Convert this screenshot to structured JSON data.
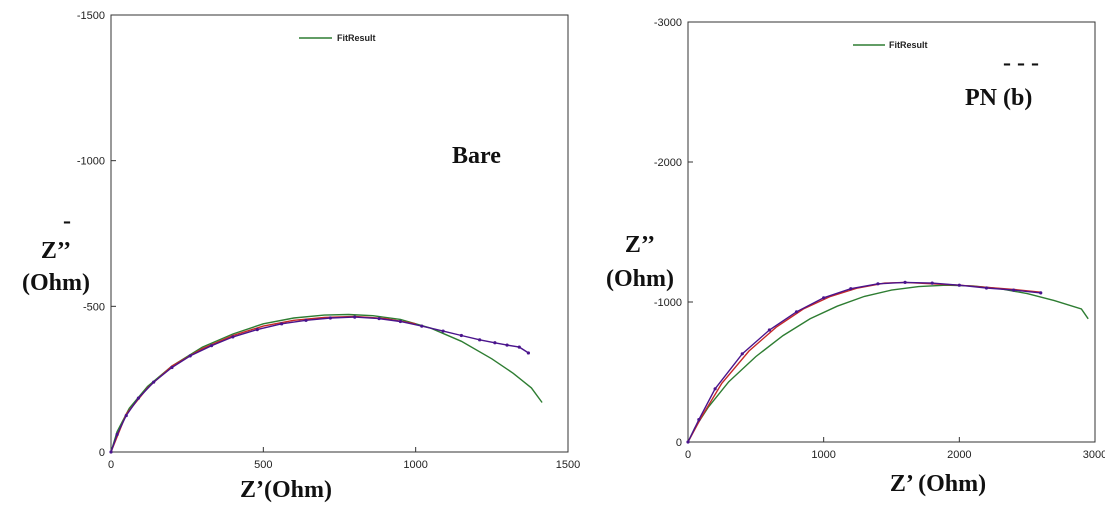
{
  "chart_data": [
    {
      "type": "line",
      "annotation": "Bare",
      "xlabel": "Z’(Ohm)",
      "ylabel_line1": "Z’’",
      "ylabel_line2": "(Ohm)",
      "ylabel_mark": "-",
      "xlim": [
        0,
        1500
      ],
      "ylim": [
        0,
        -1500
      ],
      "xticks": [
        0,
        500,
        1000,
        1500
      ],
      "yticks": [
        0,
        -500,
        -1000,
        -1500
      ],
      "xtick_labels": [
        "0",
        "500",
        "1000",
        "1500"
      ],
      "ytick_labels": [
        "0",
        "-500",
        "-1000",
        "-1500"
      ],
      "grid": false,
      "legend": {
        "placement": "top-center",
        "entries": [
          {
            "label": "FitResult",
            "color": "#2e7d32"
          }
        ]
      },
      "series": [
        {
          "name": "FitResult",
          "color": "#2e7d32",
          "x": [
            0,
            20,
            60,
            120,
            200,
            300,
            400,
            500,
            600,
            700,
            780,
            860,
            950,
            1050,
            1150,
            1250,
            1320,
            1380,
            1415
          ],
          "y": [
            0,
            -70,
            -150,
            -225,
            -295,
            -360,
            -405,
            -440,
            -460,
            -470,
            -472,
            -468,
            -455,
            -425,
            -380,
            -320,
            -270,
            -220,
            -170
          ]
        },
        {
          "color": "#c62828",
          "x": [
            0,
            50,
            120,
            200,
            300,
            400,
            500,
            600,
            700,
            800,
            900,
            1000
          ],
          "y": [
            0,
            -130,
            -220,
            -295,
            -355,
            -400,
            -432,
            -452,
            -462,
            -465,
            -458,
            -440
          ]
        },
        {
          "color": "#4a148c",
          "marker": true,
          "x": [
            0,
            20,
            50,
            90,
            140,
            200,
            260,
            330,
            400,
            480,
            560,
            640,
            720,
            800,
            880,
            950,
            1020,
            1090,
            1150,
            1210,
            1260,
            1300,
            1340,
            1370
          ],
          "y": [
            0,
            -60,
            -125,
            -185,
            -240,
            -290,
            -330,
            -365,
            -395,
            -420,
            -440,
            -452,
            -460,
            -463,
            -458,
            -448,
            -432,
            -415,
            -400,
            -385,
            -375,
            -367,
            -360,
            -340
          ]
        }
      ]
    },
    {
      "type": "line",
      "annotation": "PN (b)",
      "annotation_mark": "- - -",
      "xlabel": "Z’ (Ohm)",
      "ylabel_line1": "Z’’",
      "ylabel_line2": "(Ohm)",
      "xlim": [
        0,
        3000
      ],
      "ylim": [
        0,
        -3000
      ],
      "xticks": [
        0,
        1000,
        2000,
        3000
      ],
      "yticks": [
        0,
        -1000,
        -2000,
        -3000
      ],
      "xtick_labels": [
        "0",
        "1000",
        "2000",
        "3000"
      ],
      "ytick_labels": [
        "0",
        "-1000",
        "-2000",
        "-3000"
      ],
      "grid": false,
      "legend": {
        "placement": "top-center",
        "entries": [
          {
            "label": "FitResult",
            "color": "#2e7d32"
          }
        ]
      },
      "series": [
        {
          "name": "FitResult",
          "color": "#2e7d32",
          "x": [
            0,
            50,
            150,
            300,
            500,
            700,
            900,
            1100,
            1300,
            1500,
            1700,
            1900,
            2100,
            2300,
            2500,
            2700,
            2900,
            2950
          ],
          "y": [
            0,
            -100,
            -250,
            -430,
            -610,
            -760,
            -880,
            -970,
            -1040,
            -1085,
            -1110,
            -1120,
            -1115,
            -1095,
            -1060,
            -1010,
            -950,
            -880
          ]
        },
        {
          "color": "#c62828",
          "x": [
            0,
            100,
            250,
            450,
            650,
            850,
            1050,
            1250,
            1450,
            1600,
            1800,
            2000,
            2200,
            2400,
            2600
          ],
          "y": [
            0,
            -180,
            -420,
            -650,
            -820,
            -950,
            -1040,
            -1100,
            -1135,
            -1140,
            -1130,
            -1120,
            -1105,
            -1090,
            -1070
          ]
        },
        {
          "color": "#4a148c",
          "marker": true,
          "x": [
            0,
            80,
            200,
            400,
            600,
            800,
            1000,
            1200,
            1400,
            1600,
            1800,
            2000,
            2200,
            2400,
            2600
          ],
          "y": [
            0,
            -160,
            -380,
            -630,
            -800,
            -930,
            -1030,
            -1095,
            -1130,
            -1140,
            -1135,
            -1120,
            -1100,
            -1085,
            -1065
          ]
        }
      ]
    }
  ]
}
